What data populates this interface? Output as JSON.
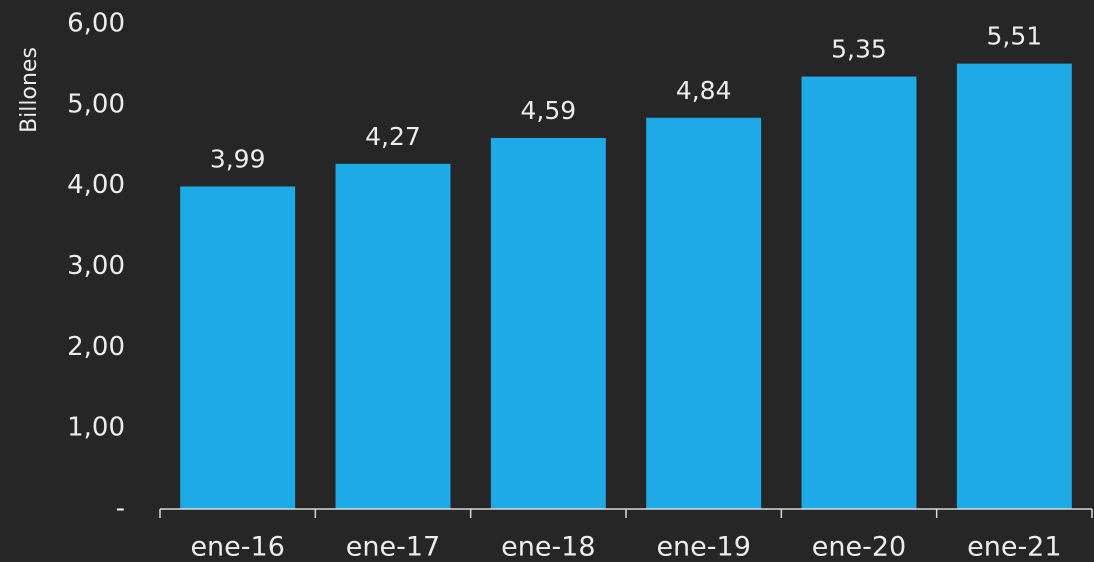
{
  "chart_data": {
    "type": "bar",
    "y_label": "Billones",
    "categories": [
      "ene-16",
      "ene-17",
      "ene-18",
      "ene-19",
      "ene-20",
      "ene-21"
    ],
    "values": [
      3.99,
      4.27,
      4.59,
      4.84,
      5.35,
      5.51
    ],
    "value_labels": [
      "3,99",
      "4,27",
      "4,59",
      "4,84",
      "5,35",
      "5,51"
    ],
    "color": "#1eaae6",
    "ylim": [
      0,
      6
    ],
    "yticks": [
      {
        "value": 0,
        "label": "-"
      },
      {
        "value": 1,
        "label": "1,00"
      },
      {
        "value": 2,
        "label": "2,00"
      },
      {
        "value": 3,
        "label": "3,00"
      },
      {
        "value": 4,
        "label": "4,00"
      },
      {
        "value": 5,
        "label": "5,00"
      },
      {
        "value": 6,
        "label": "6,00"
      }
    ],
    "grid": false
  }
}
